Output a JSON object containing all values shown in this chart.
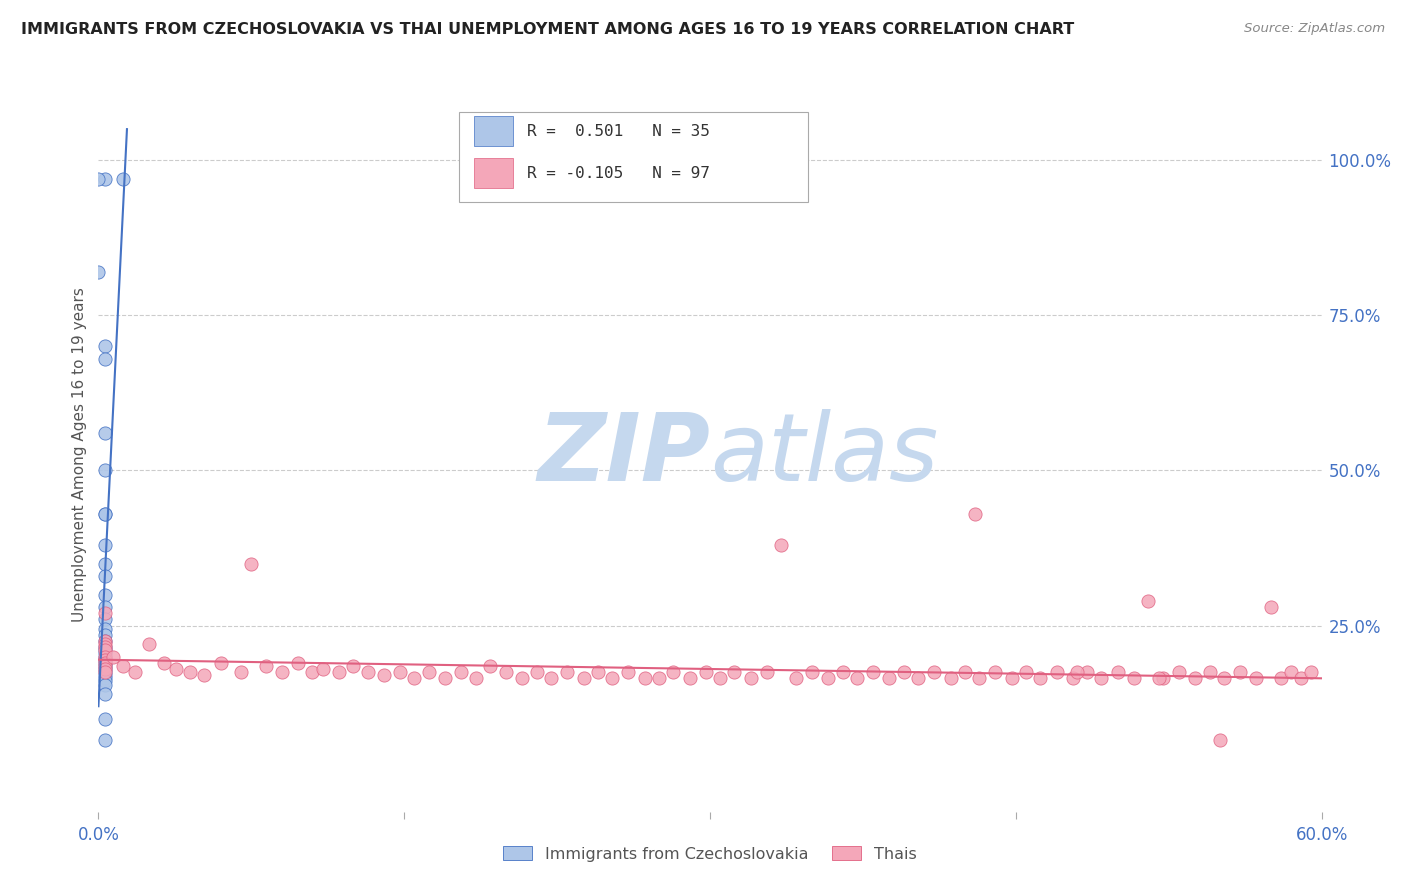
{
  "title": "IMMIGRANTS FROM CZECHOSLOVAKIA VS THAI UNEMPLOYMENT AMONG AGES 16 TO 19 YEARS CORRELATION CHART",
  "source": "Source: ZipAtlas.com",
  "ylabel": "Unemployment Among Ages 16 to 19 years",
  "right_yticks": [
    "100.0%",
    "75.0%",
    "50.0%",
    "25.0%"
  ],
  "right_ytick_vals": [
    1.0,
    0.75,
    0.5,
    0.25
  ],
  "legend_blue_r": "R =  0.501",
  "legend_blue_n": "N = 35",
  "legend_pink_r": "R = -0.105",
  "legend_pink_n": "N = 97",
  "legend_label_blue": "Immigrants from Czechoslovakia",
  "legend_label_pink": "Thais",
  "blue_dot_color": "#aec6e8",
  "blue_edge_color": "#4472c4",
  "pink_dot_color": "#f4a7b9",
  "pink_edge_color": "#e06080",
  "blue_line_color": "#4472c4",
  "pink_line_color": "#e06080",
  "title_color": "#222222",
  "axis_label_color": "#4472c4",
  "watermark_zip_color": "#c5d8ee",
  "watermark_atlas_color": "#c5d8ee",
  "grid_color": "#cccccc",
  "xlim": [
    0.0,
    0.6
  ],
  "ylim": [
    -0.05,
    1.1
  ],
  "blue_scatter_x": [
    0.003,
    0.012,
    0.0,
    0.0,
    0.003,
    0.003,
    0.003,
    0.003,
    0.003,
    0.003,
    0.003,
    0.003,
    0.003,
    0.003,
    0.003,
    0.003,
    0.003,
    0.003,
    0.003,
    0.003,
    0.003,
    0.003,
    0.003,
    0.003,
    0.003,
    0.003,
    0.003,
    0.003,
    0.003,
    0.003,
    0.003,
    0.003,
    0.003,
    0.003,
    0.003
  ],
  "blue_scatter_y": [
    0.97,
    0.97,
    0.97,
    0.82,
    0.7,
    0.68,
    0.56,
    0.5,
    0.43,
    0.43,
    0.38,
    0.35,
    0.33,
    0.3,
    0.28,
    0.26,
    0.245,
    0.235,
    0.225,
    0.215,
    0.21,
    0.205,
    0.2,
    0.195,
    0.19,
    0.185,
    0.18,
    0.175,
    0.17,
    0.165,
    0.16,
    0.155,
    0.14,
    0.1,
    0.065
  ],
  "pink_scatter_x": [
    0.003,
    0.003,
    0.003,
    0.003,
    0.003,
    0.003,
    0.003,
    0.003,
    0.003,
    0.003,
    0.003,
    0.007,
    0.012,
    0.018,
    0.025,
    0.032,
    0.038,
    0.045,
    0.052,
    0.06,
    0.07,
    0.075,
    0.082,
    0.09,
    0.098,
    0.105,
    0.11,
    0.118,
    0.125,
    0.132,
    0.14,
    0.148,
    0.155,
    0.162,
    0.17,
    0.178,
    0.185,
    0.192,
    0.2,
    0.208,
    0.215,
    0.222,
    0.23,
    0.238,
    0.245,
    0.252,
    0.26,
    0.268,
    0.275,
    0.282,
    0.29,
    0.298,
    0.305,
    0.312,
    0.32,
    0.328,
    0.335,
    0.342,
    0.35,
    0.358,
    0.365,
    0.372,
    0.38,
    0.388,
    0.395,
    0.402,
    0.41,
    0.418,
    0.425,
    0.432,
    0.44,
    0.448,
    0.455,
    0.462,
    0.47,
    0.478,
    0.485,
    0.492,
    0.5,
    0.508,
    0.515,
    0.522,
    0.53,
    0.538,
    0.545,
    0.552,
    0.56,
    0.568,
    0.575,
    0.55,
    0.58,
    0.585,
    0.59,
    0.595,
    0.43,
    0.48,
    0.52
  ],
  "pink_scatter_y": [
    0.27,
    0.225,
    0.22,
    0.215,
    0.21,
    0.2,
    0.195,
    0.19,
    0.185,
    0.18,
    0.175,
    0.2,
    0.185,
    0.175,
    0.22,
    0.19,
    0.18,
    0.175,
    0.17,
    0.19,
    0.175,
    0.35,
    0.185,
    0.175,
    0.19,
    0.175,
    0.18,
    0.175,
    0.185,
    0.175,
    0.17,
    0.175,
    0.165,
    0.175,
    0.165,
    0.175,
    0.165,
    0.185,
    0.175,
    0.165,
    0.175,
    0.165,
    0.175,
    0.165,
    0.175,
    0.165,
    0.175,
    0.165,
    0.165,
    0.175,
    0.165,
    0.175,
    0.165,
    0.175,
    0.165,
    0.175,
    0.38,
    0.165,
    0.175,
    0.165,
    0.175,
    0.165,
    0.175,
    0.165,
    0.175,
    0.165,
    0.175,
    0.165,
    0.175,
    0.165,
    0.175,
    0.165,
    0.175,
    0.165,
    0.175,
    0.165,
    0.175,
    0.165,
    0.175,
    0.165,
    0.29,
    0.165,
    0.175,
    0.165,
    0.175,
    0.165,
    0.175,
    0.165,
    0.28,
    0.065,
    0.165,
    0.175,
    0.165,
    0.175,
    0.43,
    0.175,
    0.165
  ],
  "blue_line_x": [
    0.0,
    0.014
  ],
  "blue_line_y": [
    0.12,
    1.05
  ],
  "pink_line_x": [
    0.0,
    0.6
  ],
  "pink_line_y": [
    0.195,
    0.165
  ]
}
